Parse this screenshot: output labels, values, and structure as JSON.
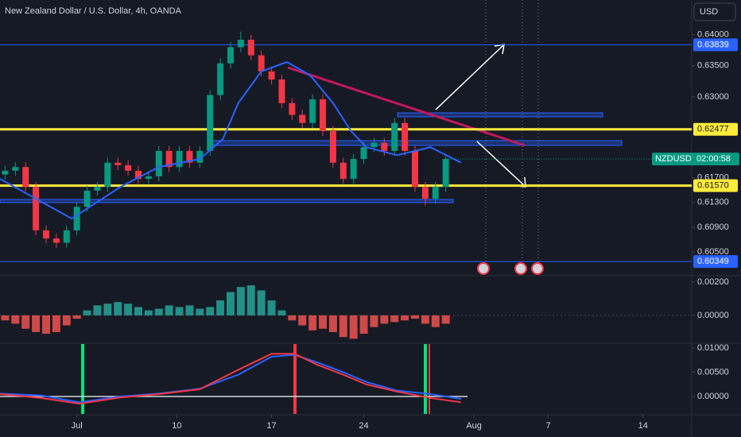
{
  "header": {
    "title": "New Zealand Dollar / U.S. Dollar, 4h, OANDA",
    "currency": "USD"
  },
  "last_label": {
    "symbol": "NZDUSD",
    "countdown": "02:00:58"
  },
  "chart_data": [
    {
      "type": "candlestick",
      "up_color": "#089981",
      "down_color": "#f23645",
      "x": [
        2,
        6,
        10,
        14,
        18,
        22,
        26,
        30,
        34,
        38,
        42,
        46,
        50,
        54,
        58,
        62,
        66,
        70,
        74,
        78,
        82,
        86,
        90,
        94,
        98,
        102,
        106,
        110,
        114,
        118,
        122,
        126,
        130,
        134,
        138,
        142,
        146,
        150,
        154,
        158,
        162,
        166,
        170,
        174
      ],
      "open": [
        0.6175,
        0.6181,
        0.6187,
        0.6155,
        0.6085,
        0.6072,
        0.6065,
        0.6085,
        0.6123,
        0.6149,
        0.6155,
        0.6194,
        0.619,
        0.6181,
        0.6168,
        0.6172,
        0.6213,
        0.6187,
        0.6213,
        0.6194,
        0.6213,
        0.6303,
        0.6354,
        0.638,
        0.6392,
        0.6367,
        0.6341,
        0.6328,
        0.629,
        0.6271,
        0.6258,
        0.6296,
        0.6245,
        0.6194,
        0.6168,
        0.62,
        0.6219,
        0.6226,
        0.6213,
        0.6258,
        0.6213,
        0.6155,
        0.6136,
        0.6155
      ],
      "high": [
        0.6189,
        0.6195,
        0.6195,
        0.6163,
        0.6093,
        0.608,
        0.6093,
        0.6131,
        0.6157,
        0.6163,
        0.6202,
        0.6202,
        0.6198,
        0.6189,
        0.618,
        0.6221,
        0.6221,
        0.6221,
        0.6221,
        0.6221,
        0.6311,
        0.6362,
        0.6388,
        0.6405,
        0.64,
        0.6375,
        0.6349,
        0.6336,
        0.6298,
        0.6279,
        0.6304,
        0.6304,
        0.6253,
        0.6202,
        0.6208,
        0.6227,
        0.6234,
        0.6234,
        0.6266,
        0.6266,
        0.6221,
        0.6163,
        0.6163,
        0.6208
      ],
      "low": [
        0.6167,
        0.6173,
        0.6147,
        0.6077,
        0.6064,
        0.6057,
        0.6057,
        0.6077,
        0.6115,
        0.6141,
        0.6147,
        0.6182,
        0.6173,
        0.616,
        0.616,
        0.6164,
        0.6179,
        0.6179,
        0.6186,
        0.6186,
        0.6205,
        0.6295,
        0.6346,
        0.6372,
        0.6359,
        0.6333,
        0.632,
        0.6282,
        0.6263,
        0.625,
        0.625,
        0.6237,
        0.6186,
        0.616,
        0.616,
        0.6192,
        0.6211,
        0.6205,
        0.6205,
        0.6205,
        0.6147,
        0.6125,
        0.6128,
        0.6147
      ],
      "close": [
        0.6181,
        0.6187,
        0.6155,
        0.6085,
        0.6072,
        0.6065,
        0.6085,
        0.6123,
        0.6149,
        0.6155,
        0.6194,
        0.619,
        0.6181,
        0.6168,
        0.6172,
        0.6213,
        0.6187,
        0.6213,
        0.6194,
        0.6213,
        0.6303,
        0.6354,
        0.638,
        0.6392,
        0.6367,
        0.6341,
        0.6328,
        0.629,
        0.6271,
        0.6258,
        0.6296,
        0.6245,
        0.6194,
        0.6168,
        0.62,
        0.6219,
        0.6226,
        0.6213,
        0.6258,
        0.6213,
        0.6155,
        0.6136,
        0.6155,
        0.62
      ],
      "ma": {
        "color": "#2962ff",
        "x": [
          0,
          28,
          47,
          62,
          78,
          87,
          93,
          102,
          112,
          121,
          130,
          137,
          143,
          155,
          168,
          180
        ],
        "values": [
          0.6168,
          0.6104,
          0.6155,
          0.6187,
          0.62,
          0.6232,
          0.629,
          0.6341,
          0.6356,
          0.6335,
          0.629,
          0.6245,
          0.6219,
          0.6206,
          0.6219,
          0.6194
        ]
      },
      "levels": [
        {
          "value": 0.63839,
          "color": "#2962ff"
        },
        {
          "value": 0.62477,
          "color": "#ffeb3b"
        },
        {
          "value": 0.6157,
          "label": "0.61570",
          "color": "#ffeb3b"
        },
        {
          "value": 0.60349,
          "color": "#2962ff"
        }
      ],
      "xlim": [
        0,
        270
      ],
      "xticks": [
        {
          "value": 30,
          "label": "Jul"
        },
        {
          "value": 69,
          "label": "10"
        },
        {
          "value": 106,
          "label": "17"
        },
        {
          "value": 142,
          "label": "24"
        },
        {
          "value": 185,
          "label": "Aug"
        },
        {
          "value": 214,
          "label": "7"
        },
        {
          "value": 251,
          "label": "14"
        }
      ],
      "ylim": [
        0.6012,
        0.6456
      ],
      "yticks": [
        {
          "value": 0.64,
          "label": "0.64000"
        },
        {
          "value": 0.635,
          "label": "0.63500"
        },
        {
          "value": 0.63,
          "label": "0.63000"
        },
        {
          "value": 0.617,
          "label": "0.61700"
        },
        {
          "value": 0.613,
          "label": "0.61300"
        },
        {
          "value": 0.609,
          "label": "0.60900"
        },
        {
          "value": 0.605,
          "label": "0.60500"
        }
      ]
    },
    {
      "type": "histogram",
      "up_color": "#26a69a",
      "down_color": "#ef5350",
      "values": [
        -0.0003,
        -0.0005,
        -0.0008,
        -0.001,
        -0.0011,
        -0.001,
        -0.0006,
        -0.0002,
        0.0003,
        0.0006,
        0.0007,
        0.0008,
        0.0007,
        0.0005,
        0.0003,
        0.0004,
        0.0006,
        0.0005,
        0.0006,
        0.0004,
        0.0005,
        0.0009,
        0.0014,
        0.0017,
        0.0018,
        0.0015,
        0.0009,
        0.0003,
        -0.0003,
        -0.0006,
        -0.0009,
        -0.0008,
        -0.001,
        -0.0013,
        -0.0014,
        -0.0011,
        -0.0007,
        -0.0005,
        -0.0004,
        -0.0003,
        -0.0002,
        -0.0005,
        -0.0007,
        -0.0005
      ],
      "ylim": [
        -0.00167,
        0.00238
      ],
      "yticks": [
        {
          "value": 0.002,
          "label": "0.00200"
        },
        {
          "value": 0,
          "label": "0.00000"
        }
      ]
    },
    {
      "type": "line",
      "x": [
        0,
        16,
        31,
        47,
        62,
        78,
        93,
        106,
        115,
        124,
        134,
        143,
        155,
        168,
        180
      ],
      "series": [
        {
          "color": "#2962ff",
          "values": [
            0.0006,
            0.0002,
            -0.0012,
            0,
            0.0006,
            0.0016,
            0.0045,
            0.0082,
            0.0086,
            0.007,
            0.005,
            0.003,
            0.0012,
            0.0005,
            -0.0005
          ]
        },
        {
          "color": "#f23645",
          "values": [
            0.0005,
            -0.0003,
            -0.0015,
            -0.0002,
            0.0005,
            0.0015,
            0.0055,
            0.0088,
            0.0088,
            0.0065,
            0.0045,
            0.0025,
            0.001,
            -0.0003,
            -0.0012
          ]
        }
      ],
      "ylim": [
        -0.00377,
        0.01098
      ],
      "yticks": [
        {
          "value": 0.01,
          "label": "0.01000"
        },
        {
          "value": 0.005,
          "label": "0.00500"
        },
        {
          "value": 0,
          "label": "0.00000"
        }
      ]
    }
  ]
}
